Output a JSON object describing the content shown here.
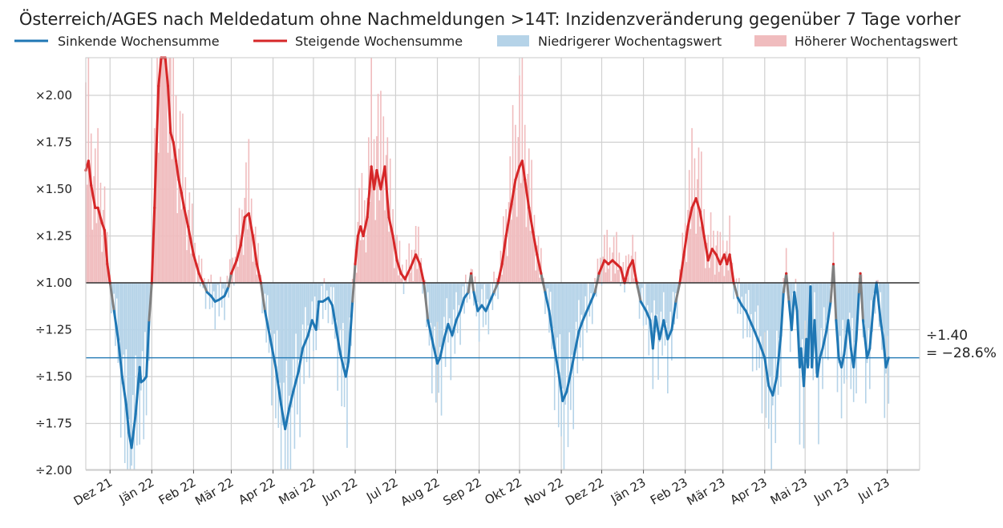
{
  "chart_data": {
    "type": "line",
    "title": "Österreich/AGES nach Meldedatum ohne Nachmeldungen >14T: Inzidenzveränderung gegenüber 7 Tage vorher",
    "xlabel": "",
    "ylabel": "",
    "y_scale": "log-ratio",
    "ylim": [
      -2.0,
      2.2
    ],
    "xlim": [
      "2021-11-13",
      "2023-07-25"
    ],
    "grid": true,
    "legend_position": "top",
    "legend": [
      {
        "label": "Sinkende Wochensumme",
        "kind": "line",
        "color": "#1f77b4"
      },
      {
        "label": "Steigende Wochensumme",
        "kind": "line",
        "color": "#d62728"
      },
      {
        "label": "Niedrigerer Wochentagswert",
        "kind": "bar",
        "color": "#b5d3e8"
      },
      {
        "label": "Höherer Wochentagswert",
        "kind": "bar",
        "color": "#f0bcbe"
      }
    ],
    "y_ticks": [
      {
        "value": 2.0,
        "label": "×2.00"
      },
      {
        "value": 1.75,
        "label": "×1.75"
      },
      {
        "value": 1.5,
        "label": "×1.50"
      },
      {
        "value": 1.25,
        "label": "×1.25"
      },
      {
        "value": 1.0,
        "label": "×1.00"
      },
      {
        "value": -1.25,
        "label": "÷1.25"
      },
      {
        "value": -1.5,
        "label": "÷1.50"
      },
      {
        "value": -1.75,
        "label": "÷1.75"
      },
      {
        "value": -2.0,
        "label": "÷2.00"
      }
    ],
    "x_ticks": [
      {
        "date": "2021-12-01",
        "label": "Dez 21"
      },
      {
        "date": "2022-01-01",
        "label": "Jän 22"
      },
      {
        "date": "2022-02-01",
        "label": "Feb 22"
      },
      {
        "date": "2022-03-01",
        "label": "Mär 22"
      },
      {
        "date": "2022-04-01",
        "label": "Apr 22"
      },
      {
        "date": "2022-05-01",
        "label": "Mai 22"
      },
      {
        "date": "2022-06-01",
        "label": "Jun 22"
      },
      {
        "date": "2022-07-01",
        "label": "Jul 22"
      },
      {
        "date": "2022-08-01",
        "label": "Aug 22"
      },
      {
        "date": "2022-09-01",
        "label": "Sep 22"
      },
      {
        "date": "2022-10-01",
        "label": "Okt 22"
      },
      {
        "date": "2022-11-01",
        "label": "Nov 22"
      },
      {
        "date": "2022-12-01",
        "label": "Dez 22"
      },
      {
        "date": "2023-01-01",
        "label": "Jän 23"
      },
      {
        "date": "2023-02-01",
        "label": "Feb 23"
      },
      {
        "date": "2023-03-01",
        "label": "Mär 23"
      },
      {
        "date": "2023-04-01",
        "label": "Apr 23"
      },
      {
        "date": "2023-05-01",
        "label": "Mai 23"
      },
      {
        "date": "2023-06-01",
        "label": "Jun 23"
      },
      {
        "date": "2023-07-01",
        "label": "Jul 23"
      }
    ],
    "reference_line": {
      "value": -1.4,
      "color": "#1f77b4"
    },
    "annotation": {
      "line1": "÷1.40",
      "line2": "= −28.6%"
    },
    "colors": {
      "falling": "#1f77b4",
      "rising": "#d62728",
      "transition": "#808080",
      "bar_low": "#b5d3e8",
      "bar_high": "#f0bcbe"
    },
    "series": [
      {
        "name": "Wochensumme (Verhältnis zu 7 Tage vorher)",
        "points": [
          [
            "2021-11-13",
            1.6
          ],
          [
            "2021-11-15",
            1.65
          ],
          [
            "2021-11-17",
            1.52
          ],
          [
            "2021-11-20",
            1.4
          ],
          [
            "2021-11-22",
            1.4
          ],
          [
            "2021-11-25",
            1.32
          ],
          [
            "2021-11-27",
            1.28
          ],
          [
            "2021-11-29",
            1.1
          ],
          [
            "2021-12-01",
            1.0
          ],
          [
            "2021-12-04",
            -1.15
          ],
          [
            "2021-12-07",
            -1.3
          ],
          [
            "2021-12-10",
            -1.5
          ],
          [
            "2021-12-13",
            -1.65
          ],
          [
            "2021-12-15",
            -1.8
          ],
          [
            "2021-12-17",
            -1.88
          ],
          [
            "2021-12-20",
            -1.7
          ],
          [
            "2021-12-23",
            -1.45
          ],
          [
            "2021-12-24",
            -1.53
          ],
          [
            "2021-12-26",
            -1.52
          ],
          [
            "2021-12-28",
            -1.5
          ],
          [
            "2021-12-30",
            -1.2
          ],
          [
            "2022-01-01",
            1.0
          ],
          [
            "2022-01-03",
            1.4
          ],
          [
            "2022-01-06",
            2.05
          ],
          [
            "2022-01-08",
            2.45
          ],
          [
            "2022-01-11",
            2.25
          ],
          [
            "2022-01-13",
            2.05
          ],
          [
            "2022-01-15",
            1.8
          ],
          [
            "2022-01-17",
            1.75
          ],
          [
            "2022-01-19",
            1.65
          ],
          [
            "2022-01-21",
            1.55
          ],
          [
            "2022-01-23",
            1.48
          ],
          [
            "2022-01-25",
            1.4
          ],
          [
            "2022-01-28",
            1.3
          ],
          [
            "2022-02-01",
            1.15
          ],
          [
            "2022-02-05",
            1.05
          ],
          [
            "2022-02-08",
            1.0
          ],
          [
            "2022-02-11",
            -1.05
          ],
          [
            "2022-02-14",
            -1.07
          ],
          [
            "2022-02-17",
            -1.1
          ],
          [
            "2022-02-20",
            -1.09
          ],
          [
            "2022-02-24",
            -1.07
          ],
          [
            "2022-02-27",
            -1.02
          ],
          [
            "2022-03-01",
            1.05
          ],
          [
            "2022-03-05",
            1.12
          ],
          [
            "2022-03-08",
            1.2
          ],
          [
            "2022-03-11",
            1.35
          ],
          [
            "2022-03-14",
            1.37
          ],
          [
            "2022-03-17",
            1.25
          ],
          [
            "2022-03-20",
            1.1
          ],
          [
            "2022-03-23",
            1.0
          ],
          [
            "2022-03-26",
            -1.15
          ],
          [
            "2022-03-30",
            -1.3
          ],
          [
            "2022-04-03",
            -1.45
          ],
          [
            "2022-04-07",
            -1.65
          ],
          [
            "2022-04-10",
            -1.78
          ],
          [
            "2022-04-13",
            -1.67
          ],
          [
            "2022-04-16",
            -1.58
          ],
          [
            "2022-04-20",
            -1.47
          ],
          [
            "2022-04-23",
            -1.35
          ],
          [
            "2022-04-27",
            -1.28
          ],
          [
            "2022-04-30",
            -1.2
          ],
          [
            "2022-05-03",
            -1.25
          ],
          [
            "2022-05-05",
            -1.1
          ],
          [
            "2022-05-08",
            -1.1
          ],
          [
            "2022-05-12",
            -1.08
          ],
          [
            "2022-05-15",
            -1.12
          ],
          [
            "2022-05-18",
            -1.25
          ],
          [
            "2022-05-21",
            -1.38
          ],
          [
            "2022-05-25",
            -1.5
          ],
          [
            "2022-05-27",
            -1.42
          ],
          [
            "2022-05-30",
            -1.1
          ],
          [
            "2022-06-01",
            1.1
          ],
          [
            "2022-06-03",
            1.25
          ],
          [
            "2022-06-05",
            1.3
          ],
          [
            "2022-06-07",
            1.25
          ],
          [
            "2022-06-10",
            1.35
          ],
          [
            "2022-06-13",
            1.62
          ],
          [
            "2022-06-15",
            1.5
          ],
          [
            "2022-06-17",
            1.6
          ],
          [
            "2022-06-20",
            1.5
          ],
          [
            "2022-06-23",
            1.62
          ],
          [
            "2022-06-26",
            1.35
          ],
          [
            "2022-06-29",
            1.25
          ],
          [
            "2022-07-02",
            1.12
          ],
          [
            "2022-07-05",
            1.05
          ],
          [
            "2022-07-08",
            1.02
          ],
          [
            "2022-07-12",
            1.08
          ],
          [
            "2022-07-16",
            1.15
          ],
          [
            "2022-07-19",
            1.1
          ],
          [
            "2022-07-22",
            1.0
          ],
          [
            "2022-07-25",
            -1.2
          ],
          [
            "2022-07-28",
            -1.3
          ],
          [
            "2022-08-01",
            -1.43
          ],
          [
            "2022-08-03",
            -1.4
          ],
          [
            "2022-08-06",
            -1.3
          ],
          [
            "2022-08-09",
            -1.22
          ],
          [
            "2022-08-12",
            -1.28
          ],
          [
            "2022-08-15",
            -1.2
          ],
          [
            "2022-08-18",
            -1.15
          ],
          [
            "2022-08-21",
            -1.08
          ],
          [
            "2022-08-24",
            -1.05
          ],
          [
            "2022-08-26",
            1.05
          ],
          [
            "2022-08-28",
            -1.05
          ],
          [
            "2022-08-31",
            -1.15
          ],
          [
            "2022-09-03",
            -1.12
          ],
          [
            "2022-09-06",
            -1.15
          ],
          [
            "2022-09-09",
            -1.1
          ],
          [
            "2022-09-12",
            -1.05
          ],
          [
            "2022-09-15",
            1.0
          ],
          [
            "2022-09-18",
            1.1
          ],
          [
            "2022-09-21",
            1.25
          ],
          [
            "2022-09-25",
            1.42
          ],
          [
            "2022-09-28",
            1.55
          ],
          [
            "2022-10-01",
            1.62
          ],
          [
            "2022-10-03",
            1.65
          ],
          [
            "2022-10-05",
            1.55
          ],
          [
            "2022-10-08",
            1.4
          ],
          [
            "2022-10-11",
            1.27
          ],
          [
            "2022-10-14",
            1.15
          ],
          [
            "2022-10-17",
            1.05
          ],
          [
            "2022-10-20",
            -1.05
          ],
          [
            "2022-10-23",
            -1.15
          ],
          [
            "2022-10-27",
            -1.35
          ],
          [
            "2022-10-30",
            -1.48
          ],
          [
            "2022-11-02",
            -1.63
          ],
          [
            "2022-11-05",
            -1.58
          ],
          [
            "2022-11-08",
            -1.48
          ],
          [
            "2022-11-11",
            -1.37
          ],
          [
            "2022-11-14",
            -1.26
          ],
          [
            "2022-11-17",
            -1.2
          ],
          [
            "2022-11-20",
            -1.15
          ],
          [
            "2022-11-23",
            -1.1
          ],
          [
            "2022-11-26",
            -1.05
          ],
          [
            "2022-11-29",
            1.05
          ],
          [
            "2022-12-03",
            1.12
          ],
          [
            "2022-12-06",
            1.1
          ],
          [
            "2022-12-09",
            1.12
          ],
          [
            "2022-12-12",
            1.1
          ],
          [
            "2022-12-15",
            1.08
          ],
          [
            "2022-12-18",
            1.0
          ],
          [
            "2022-12-21",
            1.08
          ],
          [
            "2022-12-24",
            1.12
          ],
          [
            "2022-12-27",
            1.0
          ],
          [
            "2022-12-30",
            -1.1
          ],
          [
            "2023-01-03",
            -1.15
          ],
          [
            "2023-01-06",
            -1.2
          ],
          [
            "2023-01-08",
            -1.35
          ],
          [
            "2023-01-10",
            -1.18
          ],
          [
            "2023-01-13",
            -1.3
          ],
          [
            "2023-01-16",
            -1.2
          ],
          [
            "2023-01-19",
            -1.3
          ],
          [
            "2023-01-22",
            -1.25
          ],
          [
            "2023-01-25",
            -1.1
          ],
          [
            "2023-01-28",
            1.0
          ],
          [
            "2023-01-31",
            1.15
          ],
          [
            "2023-02-03",
            1.3
          ],
          [
            "2023-02-06",
            1.4
          ],
          [
            "2023-02-09",
            1.45
          ],
          [
            "2023-02-12",
            1.38
          ],
          [
            "2023-02-15",
            1.25
          ],
          [
            "2023-02-18",
            1.12
          ],
          [
            "2023-02-21",
            1.18
          ],
          [
            "2023-02-24",
            1.15
          ],
          [
            "2023-02-27",
            1.1
          ],
          [
            "2023-03-02",
            1.15
          ],
          [
            "2023-03-04",
            1.1
          ],
          [
            "2023-03-06",
            1.15
          ],
          [
            "2023-03-09",
            1.0
          ],
          [
            "2023-03-12",
            -1.08
          ],
          [
            "2023-03-15",
            -1.12
          ],
          [
            "2023-03-18",
            -1.15
          ],
          [
            "2023-03-21",
            -1.2
          ],
          [
            "2023-03-24",
            -1.25
          ],
          [
            "2023-03-28",
            -1.32
          ],
          [
            "2023-04-01",
            -1.4
          ],
          [
            "2023-04-04",
            -1.55
          ],
          [
            "2023-04-07",
            -1.6
          ],
          [
            "2023-04-10",
            -1.5
          ],
          [
            "2023-04-13",
            -1.28
          ],
          [
            "2023-04-15",
            -1.05
          ],
          [
            "2023-04-17",
            1.05
          ],
          [
            "2023-04-19",
            -1.1
          ],
          [
            "2023-04-21",
            -1.25
          ],
          [
            "2023-04-23",
            -1.05
          ],
          [
            "2023-04-25",
            -1.15
          ],
          [
            "2023-04-27",
            -1.45
          ],
          [
            "2023-04-28",
            -1.35
          ],
          [
            "2023-04-30",
            -1.55
          ],
          [
            "2023-05-02",
            -1.3
          ],
          [
            "2023-05-03",
            -1.45
          ],
          [
            "2023-05-05",
            -1.02
          ],
          [
            "2023-05-06",
            -1.45
          ],
          [
            "2023-05-08",
            -1.2
          ],
          [
            "2023-05-10",
            -1.5
          ],
          [
            "2023-05-12",
            -1.4
          ],
          [
            "2023-05-14",
            -1.35
          ],
          [
            "2023-05-17",
            -1.25
          ],
          [
            "2023-05-20",
            -1.1
          ],
          [
            "2023-05-22",
            1.1
          ],
          [
            "2023-05-24",
            -1.2
          ],
          [
            "2023-05-26",
            -1.4
          ],
          [
            "2023-05-28",
            -1.45
          ],
          [
            "2023-05-30",
            -1.38
          ],
          [
            "2023-06-02",
            -1.2
          ],
          [
            "2023-06-04",
            -1.35
          ],
          [
            "2023-06-06",
            -1.45
          ],
          [
            "2023-06-08",
            -1.3
          ],
          [
            "2023-06-10",
            -1.05
          ],
          [
            "2023-06-11",
            1.05
          ],
          [
            "2023-06-13",
            -1.2
          ],
          [
            "2023-06-16",
            -1.4
          ],
          [
            "2023-06-18",
            -1.35
          ],
          [
            "2023-06-21",
            -1.1
          ],
          [
            "2023-06-23",
            -1.0
          ],
          [
            "2023-06-26",
            -1.2
          ],
          [
            "2023-06-28",
            -1.3
          ],
          [
            "2023-06-30",
            -1.45
          ],
          [
            "2023-07-02",
            -1.4
          ]
        ]
      }
    ],
    "bars_description": "daily weekday ratio bars: light red above ×1.00, light blue below"
  }
}
